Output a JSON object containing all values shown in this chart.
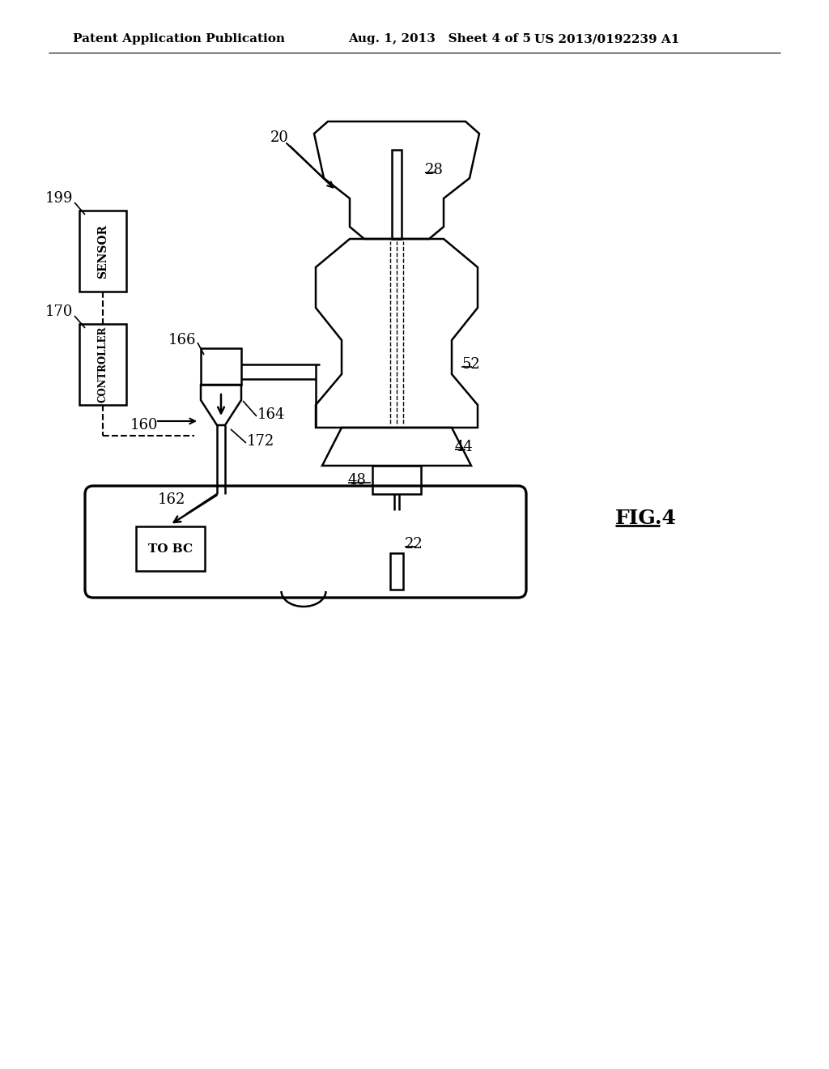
{
  "bg_color": "#ffffff",
  "line_color": "#000000",
  "header_text_left": "Patent Application Publication",
  "header_text_mid": "Aug. 1, 2013   Sheet 4 of 5",
  "header_text_right": "US 2013/0192239 A1",
  "fig_label": "FIG.4"
}
